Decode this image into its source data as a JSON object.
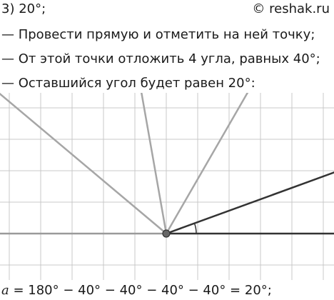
{
  "header": {
    "task_label": "3) 20°;",
    "watermark": "© reshak.ru"
  },
  "steps": [
    "— Провести прямую и отметить на ней точку;",
    "— От этой точки отложить 4 угла, равных 40°;",
    "— Оставшийся угол будет равен 20°:"
  ],
  "formula": {
    "variable": "a",
    "expression": " = 180° − 40° − 40° − 40° − 40° = 20°;"
  },
  "figure": {
    "angle_step_deg": 40,
    "ray_count": 4,
    "remaining_angle_deg": 20,
    "colors": {
      "grid": "#c8c8c8",
      "baseline": "#9a9a9a",
      "ray": "#a6a6a6",
      "dark": "#333333",
      "point": "#666666"
    }
  }
}
